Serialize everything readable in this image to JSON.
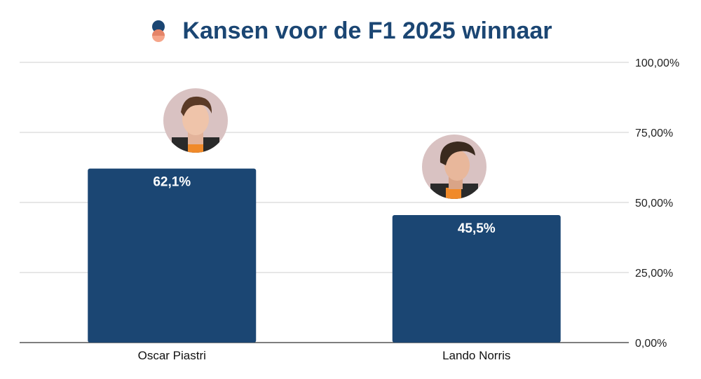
{
  "chart_data": {
    "type": "bar",
    "title": "Kansen voor de F1 2025 winnaar",
    "categories": [
      "Oscar Piastri",
      "Lando Norris"
    ],
    "values": [
      62.1,
      45.5
    ],
    "data_labels": [
      "62,1%",
      "45,5%"
    ],
    "ylim": [
      0,
      100
    ],
    "yticks": [
      0,
      25,
      50,
      75,
      100
    ],
    "ytick_labels": [
      "0,00%",
      "25,00%",
      "50,00%",
      "75,00%",
      "100,00%"
    ],
    "y_axis_side": "right",
    "grid": true,
    "legend": "none",
    "xlabel": "",
    "ylabel": "",
    "bar_color": "#1b4673",
    "gridline_color": "#cfcfcf",
    "title_color": "#1b4673"
  }
}
